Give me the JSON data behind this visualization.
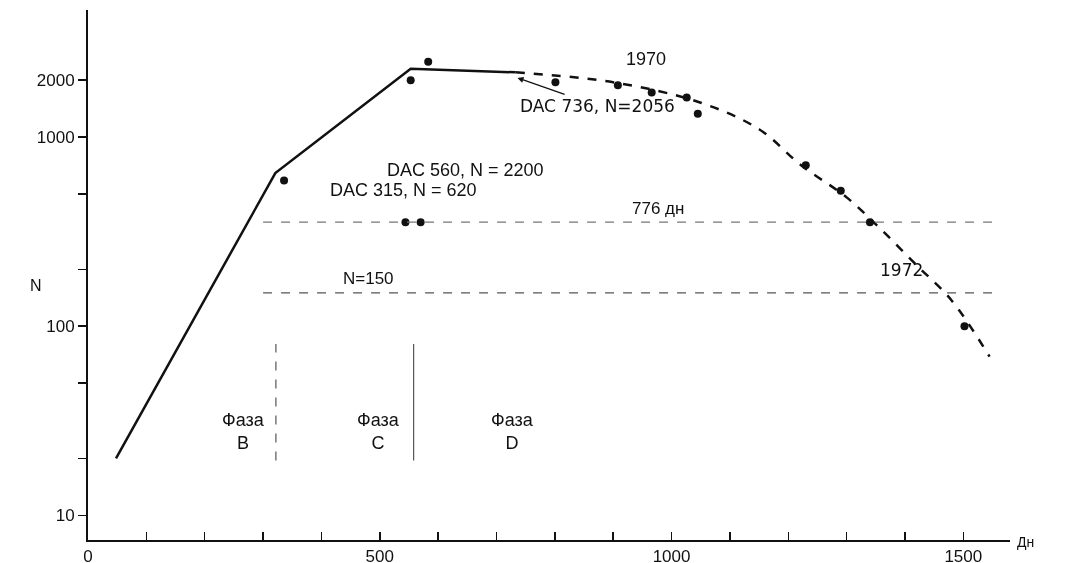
{
  "chart_data": {
    "type": "line",
    "xlabel": "Дн",
    "ylabel": "N",
    "log": "y",
    "xlim": [
      0,
      1580
    ],
    "xticks": [
      0,
      {
        "value": 100,
        "label": null
      },
      {
        "value": 200,
        "label": null
      },
      {
        "value": 300,
        "label": null
      },
      {
        "value": 400,
        "label": null
      },
      500,
      {
        "value": 600,
        "label": null
      },
      {
        "value": 700,
        "label": null
      },
      {
        "value": 800,
        "label": null
      },
      {
        "value": 900,
        "label": null
      },
      1000,
      {
        "value": 1100,
        "label": null
      },
      {
        "value": 1200,
        "label": null
      },
      {
        "value": 1300,
        "label": null
      },
      {
        "value": 1400,
        "label": null
      },
      1500
    ],
    "ylim": [
      7.4,
      4700
    ],
    "yticks": [
      10,
      {
        "value": 20,
        "label": null
      },
      {
        "value": 50,
        "label": null
      },
      100,
      {
        "value": 200,
        "label": null
      },
      {
        "value": 500,
        "label": null
      },
      1000,
      2000
    ],
    "series": [
      {
        "line_style": "solid",
        "marker": "none",
        "color": "#111111",
        "x": [
          48,
          321,
          553,
          733
        ],
        "values": [
          20,
          645,
          2300,
          2200
        ]
      },
      {
        "line_style": "dashed",
        "marker": "none",
        "color": "#111111",
        "x": [
          733,
          900,
          1050,
          1150,
          1222,
          1300,
          1359,
          1420,
          1479,
          1545
        ],
        "values": [
          2200,
          1950,
          1520,
          1100,
          710,
          480,
          325,
          210,
          138,
          69
        ]
      },
      {
        "type": "scatter",
        "marker": "circle",
        "color": "#111111",
        "x": [
          336,
          553,
          583,
          801,
          908,
          966,
          1026,
          1045,
          1230,
          1290,
          1340,
          1502,
          544,
          570
        ],
        "values": [
          590,
          2000,
          2500,
          1950,
          1880,
          1720,
          1620,
          1330,
          710,
          520,
          355,
          100,
          355,
          355
        ]
      }
    ],
    "ref_lines": [
      {
        "axis": "y",
        "value": 150,
        "label": "N=150",
        "color": "#555555",
        "line_style": "dashed"
      },
      {
        "axis": "y",
        "value": 355,
        "label": "776 дн",
        "color": "#777777",
        "line_style": "dashed"
      },
      {
        "axis": "x",
        "value": 322,
        "color": "#555555",
        "line_style": "dashed"
      },
      {
        "axis": "x",
        "value": 558,
        "color": "#555555",
        "line_style": "solid"
      }
    ],
    "annotations": [
      "1970",
      {
        "text": "DAC 736, N=2056",
        "x": 736,
        "y": 2056
      },
      "DAC 560, N = 2200",
      "DAC 315, N = 620",
      {
        "text": "1972",
        "x": 1340,
        "y": 355
      },
      "Фаза\nB",
      "Фаза\nC",
      "Фаза\nD"
    ]
  }
}
